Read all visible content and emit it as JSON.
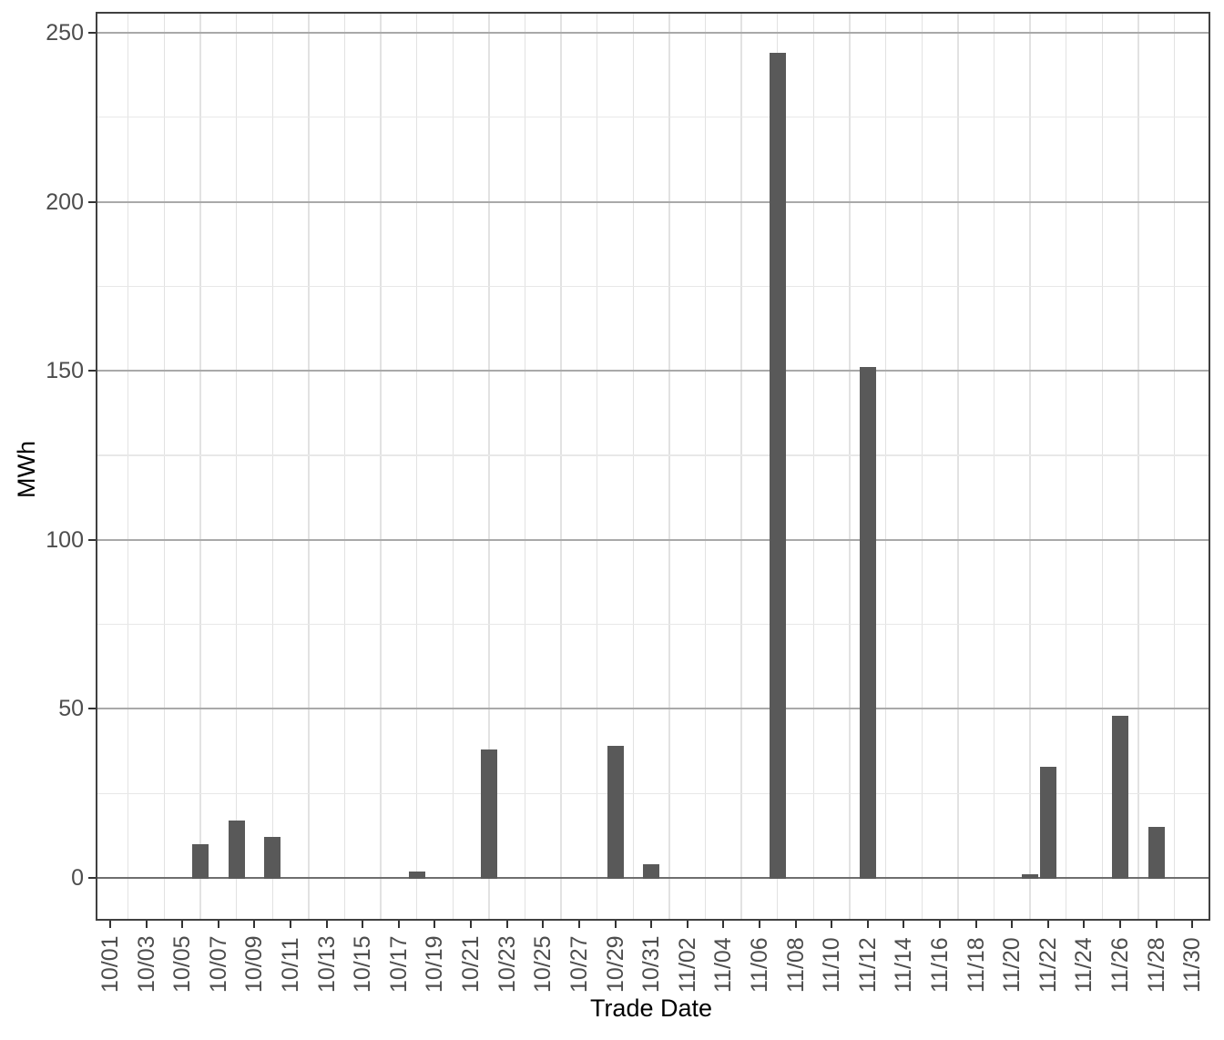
{
  "chart_data": {
    "type": "bar",
    "title": "",
    "xlabel": "Trade Date",
    "ylabel": "MWh",
    "categories": [
      "10/06",
      "10/08",
      "10/10",
      "10/18",
      "10/22",
      "10/29",
      "10/31",
      "11/07",
      "11/12",
      "11/21",
      "11/22",
      "11/26",
      "11/28"
    ],
    "values": [
      10,
      17,
      12,
      2,
      38,
      39,
      4,
      244,
      151,
      1,
      33,
      48,
      15
    ],
    "x_axis": {
      "start": "10/01",
      "end": "11/30",
      "tick_interval_days": 2,
      "label_rotation_deg": 90,
      "tick_labels": [
        "10/01",
        "10/03",
        "10/05",
        "10/07",
        "10/09",
        "10/11",
        "10/13",
        "10/15",
        "10/17",
        "10/19",
        "10/21",
        "10/23",
        "10/25",
        "10/27",
        "10/29",
        "10/31",
        "11/02",
        "11/04",
        "11/06",
        "11/08",
        "11/10",
        "11/12",
        "11/14",
        "11/16",
        "11/18",
        "11/20",
        "11/22",
        "11/24",
        "11/26",
        "11/28",
        "11/30"
      ]
    },
    "y_axis": {
      "ticks": [
        0,
        50,
        100,
        150,
        200,
        250
      ],
      "minor_step": 25,
      "range": [
        0,
        250
      ]
    },
    "ylim": [
      0,
      250
    ],
    "grid": "on",
    "legend": "none",
    "colors": {
      "bar_fill": "#595959",
      "major_grid": "#A9A9A9",
      "minor_grid": "#E8E8E8",
      "vertical_grid": "#E2E2E2",
      "zero_line": "#6E6E6E",
      "panel_border": "#404040",
      "tick_mark": "#333333",
      "axis_text": "#4D4D4D",
      "axis_title": "#000000",
      "background": "#FFFFFF"
    }
  }
}
